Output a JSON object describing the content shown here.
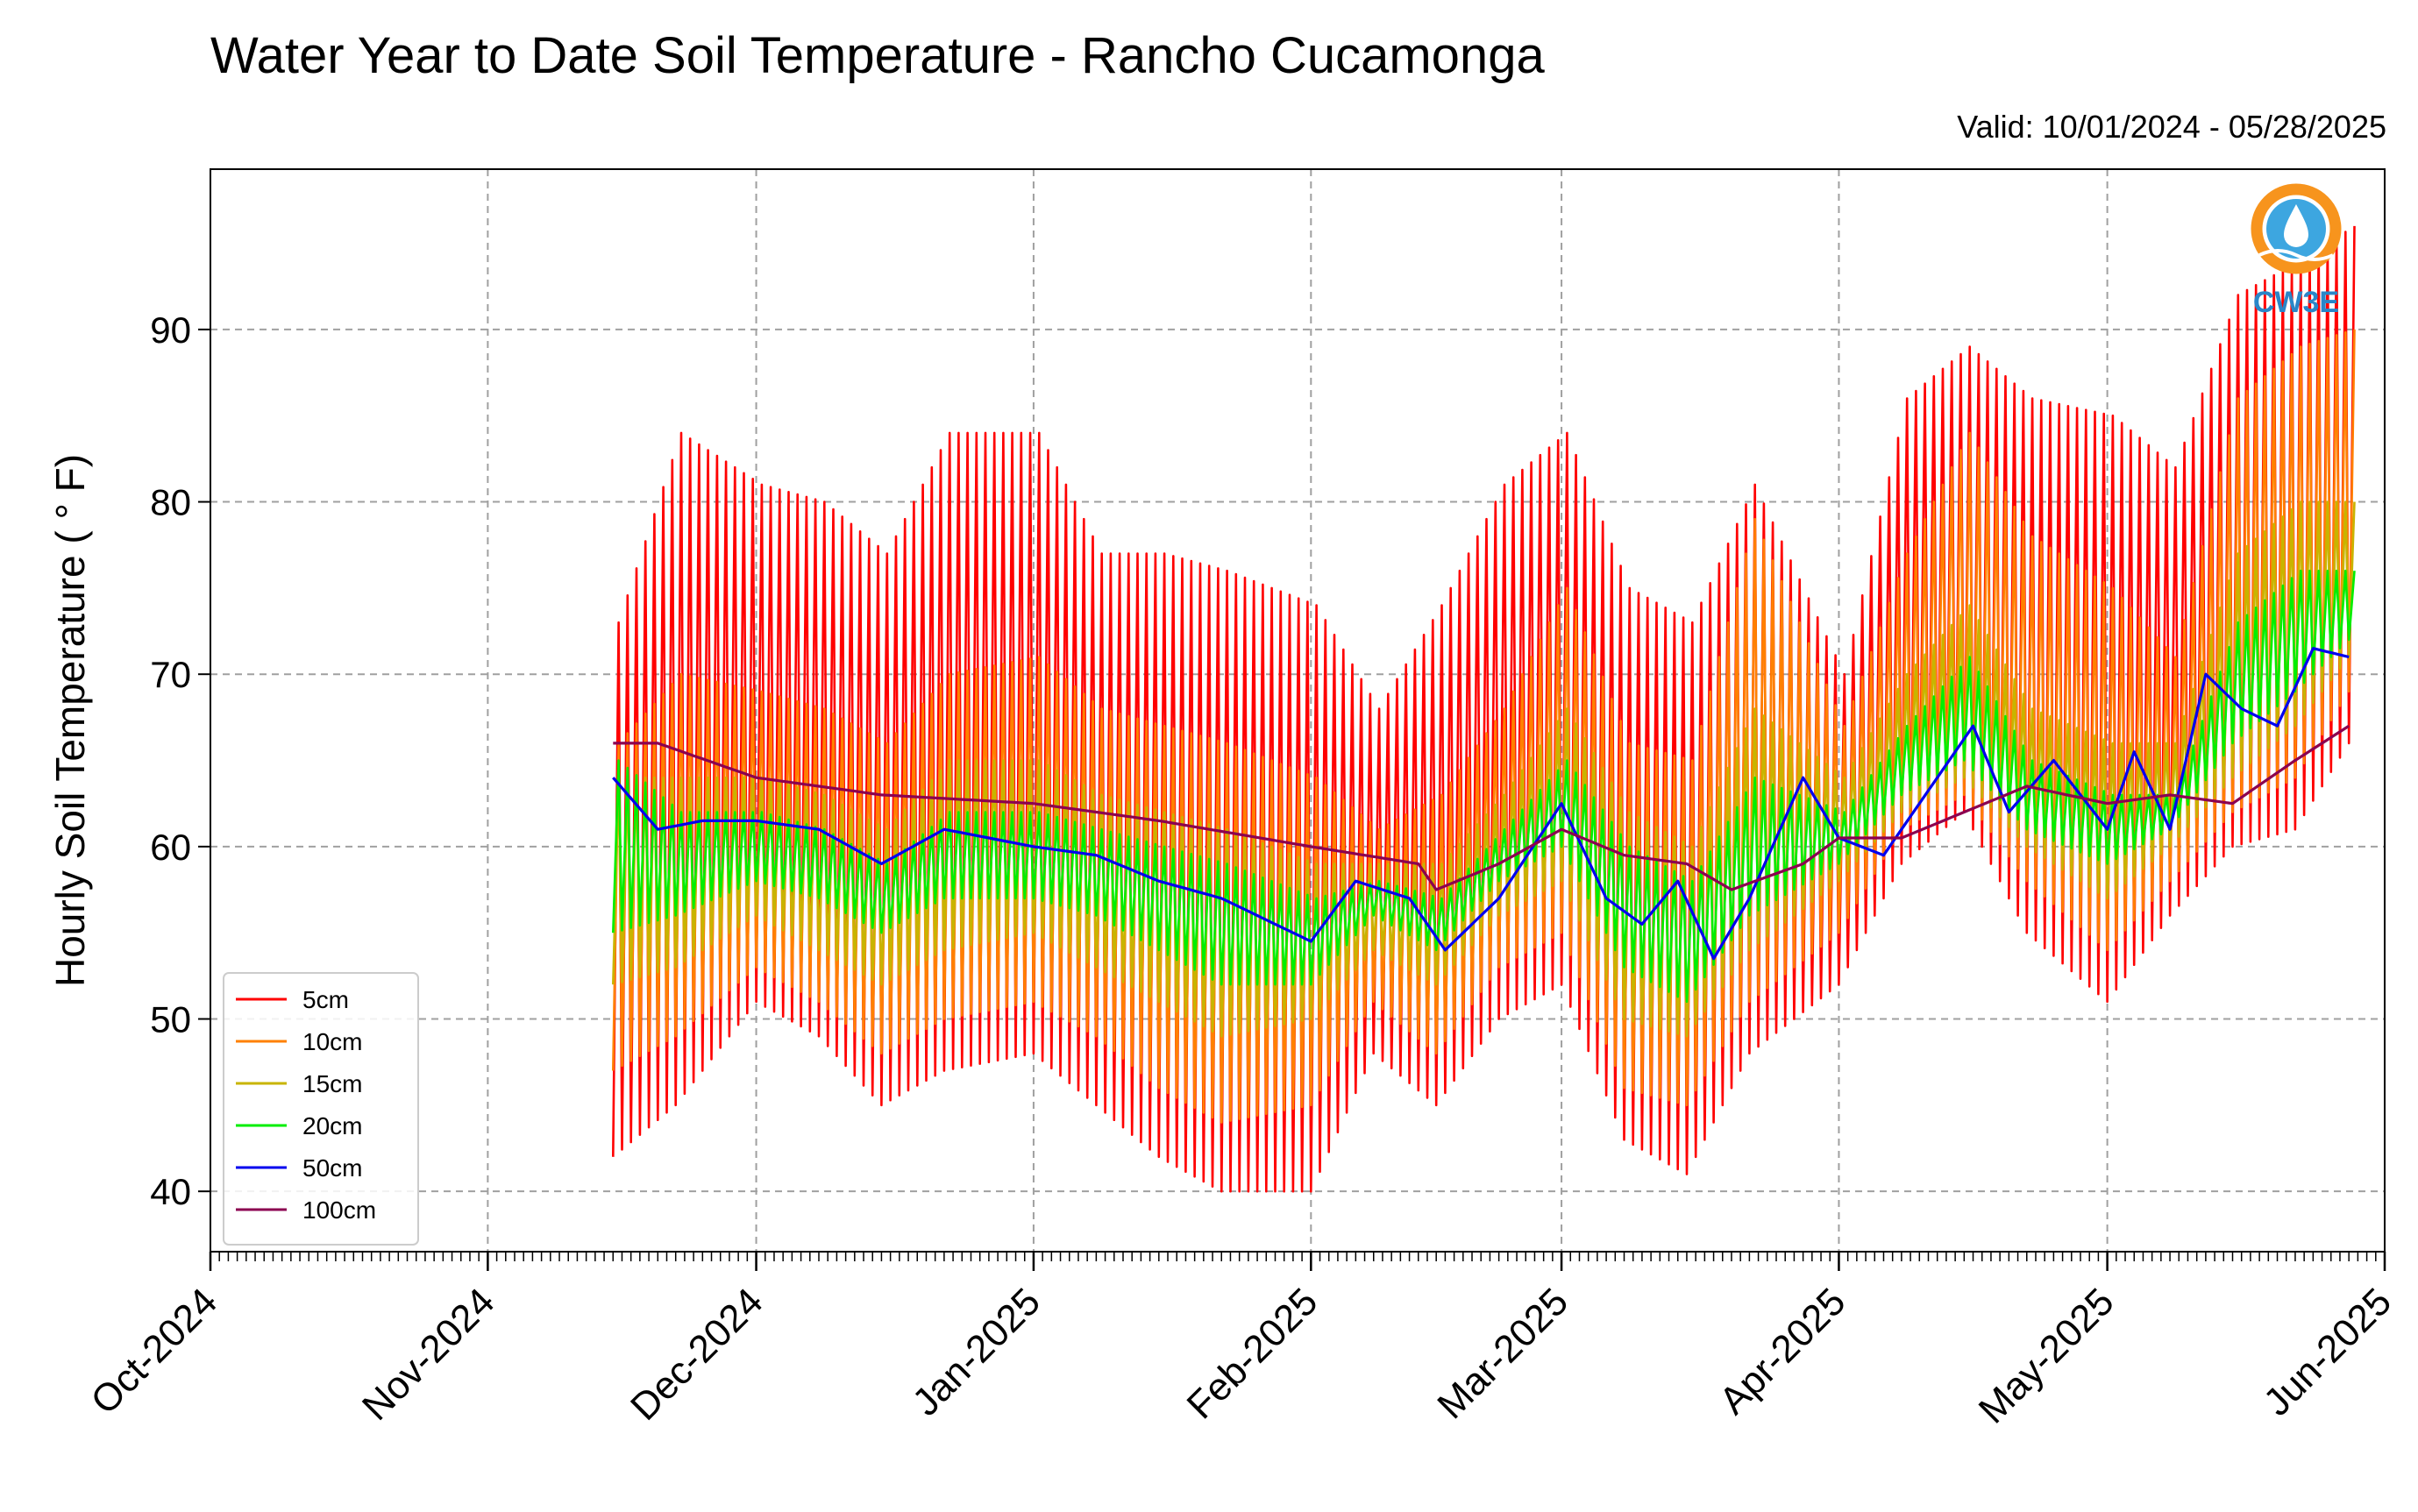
{
  "chart_data": {
    "type": "line",
    "title": "Water Year to Date Soil Temperature - Rancho Cucamonga",
    "subtitle": "Valid: 10/01/2024 - 05/28/2025",
    "ylabel": "Hourly Soil Temperature ( ° F)",
    "xlabel": "",
    "xlim": [
      "2024-10-01",
      "2025-06-01"
    ],
    "ylim": [
      36.5,
      99.3
    ],
    "yticks": [
      40,
      50,
      60,
      70,
      80,
      90
    ],
    "xticks": [
      {
        "date": "2024-10-01",
        "label": "Oct-2024"
      },
      {
        "date": "2024-11-01",
        "label": "Nov-2024"
      },
      {
        "date": "2024-12-01",
        "label": "Dec-2024"
      },
      {
        "date": "2025-01-01",
        "label": "Jan-2025"
      },
      {
        "date": "2025-02-01",
        "label": "Feb-2025"
      },
      {
        "date": "2025-03-01",
        "label": "Mar-2025"
      },
      {
        "date": "2025-04-01",
        "label": "Apr-2025"
      },
      {
        "date": "2025-05-01",
        "label": "May-2025"
      },
      {
        "date": "2025-06-01",
        "label": "Jun-2025"
      }
    ],
    "grid": true,
    "legend_position": "lower-left",
    "data_start": "2024-11-15",
    "data_end": "2025-05-28",
    "series": [
      {
        "name": "5cm",
        "color": "#ff0000",
        "x": [
          "2024-11-15",
          "2024-11-22",
          "2024-12-01",
          "2024-12-08",
          "2024-12-15",
          "2024-12-22",
          "2025-01-01",
          "2025-01-08",
          "2025-01-15",
          "2025-01-22",
          "2025-02-01",
          "2025-02-08",
          "2025-02-15",
          "2025-02-22",
          "2025-03-01",
          "2025-03-08",
          "2025-03-15",
          "2025-03-22",
          "2025-04-01",
          "2025-04-08",
          "2025-04-15",
          "2025-04-22",
          "2025-05-01",
          "2025-05-08",
          "2025-05-15",
          "2025-05-22",
          "2025-05-28"
        ],
        "max": [
          73,
          84,
          81,
          80,
          77,
          84,
          84,
          77,
          77,
          76,
          74,
          68,
          74,
          81,
          84,
          75,
          73,
          81,
          70,
          86,
          89,
          86,
          85,
          82,
          92,
          94,
          96
        ],
        "min": [
          42,
          45,
          51,
          49,
          45,
          47,
          48,
          45,
          42,
          40,
          40,
          48,
          45,
          50,
          52,
          43,
          41,
          48,
          52,
          59,
          62,
          55,
          51,
          56,
          60,
          61,
          66
        ]
      },
      {
        "name": "10cm",
        "color": "#ff8000",
        "x": [
          "2024-11-15",
          "2024-11-22",
          "2024-12-01",
          "2024-12-08",
          "2024-12-15",
          "2024-12-22",
          "2025-01-01",
          "2025-01-08",
          "2025-01-15",
          "2025-01-22",
          "2025-02-01",
          "2025-02-08",
          "2025-02-15",
          "2025-02-22",
          "2025-03-01",
          "2025-03-08",
          "2025-03-15",
          "2025-03-22",
          "2025-04-01",
          "2025-04-08",
          "2025-04-15",
          "2025-04-22",
          "2025-05-01",
          "2025-05-08",
          "2025-05-15",
          "2025-05-22",
          "2025-05-28"
        ],
        "max": [
          66,
          70,
          69,
          68,
          66,
          70,
          71,
          68,
          67,
          66,
          64,
          61,
          63,
          68,
          75,
          66,
          65,
          79,
          67,
          77,
          84,
          78,
          75,
          71,
          86,
          89,
          90
        ],
        "min": [
          47,
          49,
          53,
          51,
          48,
          50,
          51,
          49,
          46,
          44,
          45,
          51,
          48,
          53,
          55,
          46,
          45,
          51,
          55,
          61,
          63,
          58,
          54,
          58,
          62,
          64,
          69
        ]
      },
      {
        "name": "15cm",
        "color": "#c8b400",
        "x": [
          "2024-11-15",
          "2024-11-22",
          "2024-12-01",
          "2024-12-08",
          "2024-12-15",
          "2024-12-22",
          "2025-01-01",
          "2025-01-08",
          "2025-01-15",
          "2025-01-22",
          "2025-02-01",
          "2025-02-08",
          "2025-02-15",
          "2025-02-22",
          "2025-03-01",
          "2025-03-08",
          "2025-03-15",
          "2025-03-22",
          "2025-04-01",
          "2025-04-08",
          "2025-04-15",
          "2025-04-22",
          "2025-05-01",
          "2025-05-08",
          "2025-05-15",
          "2025-05-22",
          "2025-05-28"
        ],
        "max": [
          64,
          64,
          64,
          63,
          61,
          65,
          65,
          63,
          62,
          61,
          59,
          59,
          59,
          63,
          68,
          62,
          60,
          68,
          64,
          70,
          74,
          68,
          66,
          66,
          77,
          80,
          80
        ],
        "min": [
          52,
          53,
          56,
          54,
          52,
          54,
          55,
          53,
          51,
          49,
          50,
          54,
          52,
          56,
          58,
          50,
          49,
          54,
          58,
          62,
          64,
          60,
          57,
          60,
          64,
          67,
          71
        ]
      },
      {
        "name": "20cm",
        "color": "#00ee00",
        "x": [
          "2024-11-15",
          "2024-11-22",
          "2024-12-01",
          "2024-12-08",
          "2024-12-15",
          "2024-12-22",
          "2025-01-01",
          "2025-01-08",
          "2025-01-15",
          "2025-01-22",
          "2025-02-01",
          "2025-02-08",
          "2025-02-15",
          "2025-02-22",
          "2025-03-01",
          "2025-03-08",
          "2025-03-15",
          "2025-03-22",
          "2025-04-01",
          "2025-04-08",
          "2025-04-15",
          "2025-04-22",
          "2025-05-01",
          "2025-05-08",
          "2025-05-15",
          "2025-05-22",
          "2025-05-28"
        ],
        "max": [
          65,
          62,
          62,
          61,
          59,
          62,
          62,
          61,
          60,
          59,
          57,
          58,
          57,
          61,
          65,
          60,
          58,
          64,
          62,
          67,
          71,
          65,
          63,
          63,
          73,
          76,
          76
        ],
        "min": [
          55,
          56,
          58,
          57,
          55,
          57,
          57,
          56,
          54,
          52,
          52,
          56,
          54,
          58,
          60,
          53,
          51,
          56,
          59,
          63,
          65,
          61,
          59,
          61,
          66,
          69,
          72
        ]
      },
      {
        "name": "50cm",
        "color": "#0000ee",
        "x": [
          "2024-11-15",
          "2024-11-20",
          "2024-11-25",
          "2024-12-01",
          "2024-12-08",
          "2024-12-15",
          "2024-12-22",
          "2025-01-01",
          "2025-01-08",
          "2025-01-15",
          "2025-01-22",
          "2025-02-01",
          "2025-02-06",
          "2025-02-12",
          "2025-02-16",
          "2025-02-22",
          "2025-03-01",
          "2025-03-06",
          "2025-03-10",
          "2025-03-14",
          "2025-03-18",
          "2025-03-22",
          "2025-03-28",
          "2025-04-01",
          "2025-04-06",
          "2025-04-12",
          "2025-04-16",
          "2025-04-20",
          "2025-04-25",
          "2025-05-01",
          "2025-05-04",
          "2025-05-08",
          "2025-05-12",
          "2025-05-16",
          "2025-05-20",
          "2025-05-24",
          "2025-05-28"
        ],
        "y": [
          64,
          61,
          61.5,
          61.5,
          61,
          59,
          61,
          60,
          59.5,
          58,
          57,
          54.5,
          58,
          57,
          54,
          57,
          62.5,
          57,
          55.5,
          58,
          53.5,
          57,
          64,
          60.5,
          59.5,
          64,
          67,
          62,
          65,
          61,
          65.5,
          61,
          70,
          68,
          67,
          71.5,
          71
        ]
      },
      {
        "name": "100cm",
        "color": "#8b0050",
        "x": [
          "2024-11-15",
          "2024-11-20",
          "2024-12-01",
          "2024-12-15",
          "2025-01-01",
          "2025-01-15",
          "2025-02-01",
          "2025-02-07",
          "2025-02-13",
          "2025-02-15",
          "2025-02-22",
          "2025-03-01",
          "2025-03-08",
          "2025-03-15",
          "2025-03-20",
          "2025-03-28",
          "2025-04-01",
          "2025-04-08",
          "2025-04-15",
          "2025-04-22",
          "2025-05-01",
          "2025-05-08",
          "2025-05-15",
          "2025-05-22",
          "2025-05-28"
        ],
        "y": [
          66,
          66,
          64,
          63,
          62.5,
          61.5,
          60,
          59.5,
          59,
          57.5,
          59,
          61,
          59.5,
          59,
          57.5,
          59,
          60.5,
          60.5,
          62,
          63.5,
          62.5,
          63,
          62.5,
          65,
          67
        ]
      }
    ]
  },
  "logo": {
    "text": "CW3E",
    "ring_color": "#f7941d",
    "drop_color": "#3da6e0",
    "text_color": "#2a86c8"
  }
}
